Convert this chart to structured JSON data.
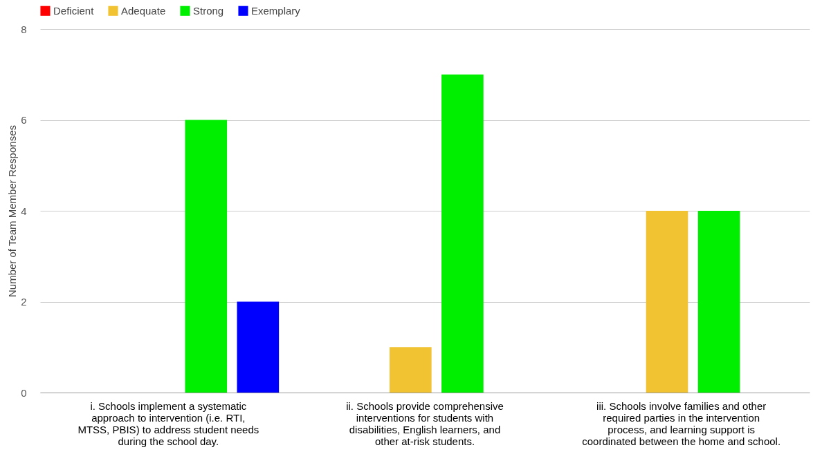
{
  "chart_data": {
    "type": "bar",
    "ylabel": "Number of Team Member Responses",
    "categories": [
      "i. Schools implement a systematic approach to intervention (i.e. RTI, MTSS, PBIS) to address student needs during the school day.",
      "ii. Schools provide comprehensive interventions for students with disabilities, English learners, and other at-risk students.",
      "iii. Schools involve families and other required parties in the intervention process, and learning support is coordinated between the home and school."
    ],
    "series": [
      {
        "name": "Deficient",
        "color": "#ff0000",
        "values": [
          0,
          0,
          0
        ]
      },
      {
        "name": "Adequate",
        "color": "#f1c232",
        "values": [
          0,
          1,
          4
        ]
      },
      {
        "name": "Strong",
        "color": "#00ee00",
        "values": [
          6,
          7,
          4
        ]
      },
      {
        "name": "Exemplary",
        "color": "#0000ff",
        "values": [
          2,
          0,
          0
        ]
      }
    ],
    "ylim": [
      0,
      8
    ],
    "yticks": [
      0,
      2,
      4,
      6,
      8
    ],
    "grid": "y",
    "legend": "top"
  }
}
